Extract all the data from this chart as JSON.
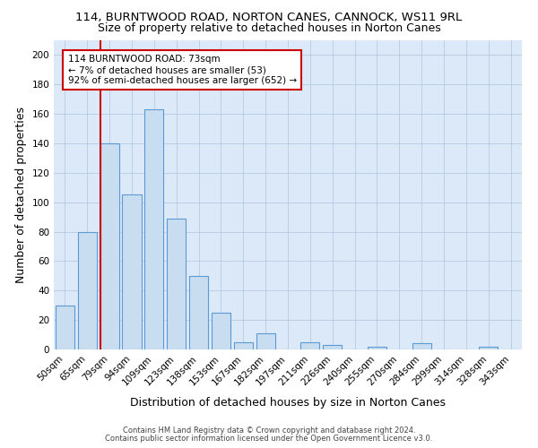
{
  "title": "114, BURNTWOOD ROAD, NORTON CANES, CANNOCK, WS11 9RL",
  "subtitle": "Size of property relative to detached houses in Norton Canes",
  "xlabel": "Distribution of detached houses by size in Norton Canes",
  "ylabel": "Number of detached properties",
  "categories": [
    "50sqm",
    "65sqm",
    "79sqm",
    "94sqm",
    "109sqm",
    "123sqm",
    "138sqm",
    "153sqm",
    "167sqm",
    "182sqm",
    "197sqm",
    "211sqm",
    "226sqm",
    "240sqm",
    "255sqm",
    "270sqm",
    "284sqm",
    "299sqm",
    "314sqm",
    "328sqm",
    "343sqm"
  ],
  "values": [
    30,
    80,
    140,
    105,
    163,
    89,
    50,
    25,
    5,
    11,
    0,
    5,
    3,
    0,
    2,
    0,
    4,
    0,
    0,
    2,
    0
  ],
  "bar_color": "#c9ddf0",
  "bar_edge_color": "#5b9bd5",
  "vline_color": "#cc0000",
  "annotation_text": "114 BURNTWOOD ROAD: 73sqm\n← 7% of detached houses are smaller (53)\n92% of semi-detached houses are larger (652) →",
  "annotation_box_color": "white",
  "annotation_box_edge_color": "#cc0000",
  "ylim": [
    0,
    210
  ],
  "yticks": [
    0,
    20,
    40,
    60,
    80,
    100,
    120,
    140,
    160,
    180,
    200
  ],
  "footer1": "Contains HM Land Registry data © Crown copyright and database right 2024.",
  "footer2": "Contains public sector information licensed under the Open Government Licence v3.0.",
  "bg_color": "#dce9f8",
  "grid_color": "#b0c4de",
  "title_fontsize": 9.5,
  "subtitle_fontsize": 9,
  "tick_fontsize": 7.5,
  "label_fontsize": 9,
  "annotation_fontsize": 7.5
}
